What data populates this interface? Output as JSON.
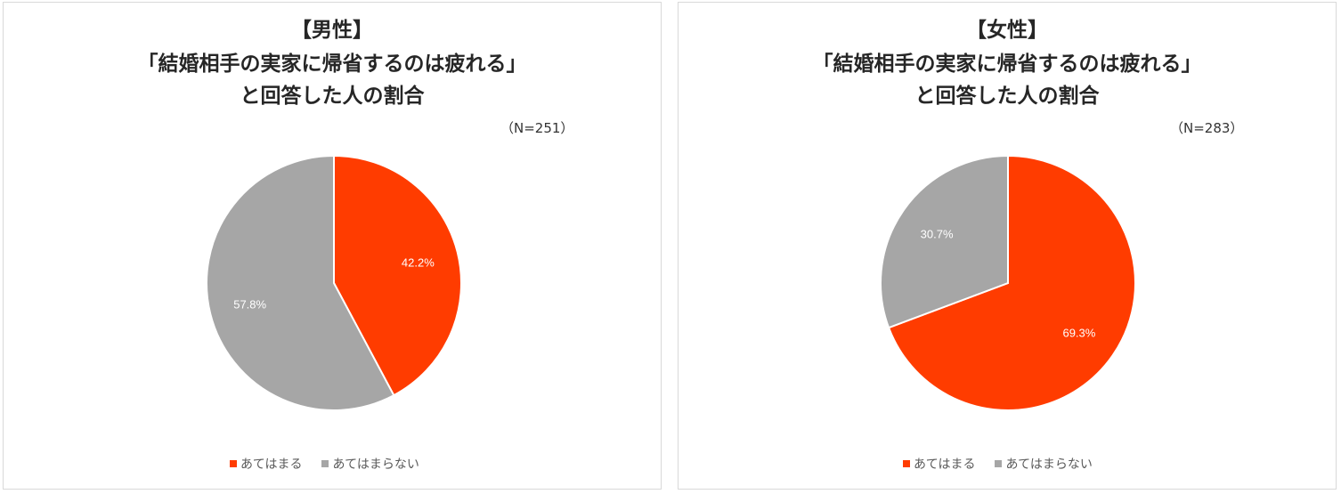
{
  "colors": {
    "accent": "#ff3c00",
    "gray": "#a6a6a6",
    "label_text": "#ffffff"
  },
  "chart_data": [
    {
      "type": "pie",
      "title_line1": "【男性】",
      "title_line2": "「結婚相手の実家に帰省するのは疲れる」",
      "title_line3": "と回答した人の割合",
      "n_label": "（N=251）",
      "categories": [
        "あてはまる",
        "あてはまらない"
      ],
      "values": [
        42.2,
        57.8
      ],
      "data_labels": [
        "42.2%",
        "57.8%"
      ],
      "legend": [
        "あてはまる",
        "あてはまらない"
      ],
      "legend_position": "bottom"
    },
    {
      "type": "pie",
      "title_line1": "【女性】",
      "title_line2": "「結婚相手の実家に帰省するのは疲れる」",
      "title_line3": "と回答した人の割合",
      "n_label": "（N=283）",
      "categories": [
        "あてはまる",
        "あてはまらない"
      ],
      "values": [
        69.3,
        30.7
      ],
      "data_labels": [
        "69.3%",
        "30.7%"
      ],
      "legend": [
        "あてはまる",
        "あてはまらない"
      ],
      "legend_position": "bottom"
    }
  ]
}
